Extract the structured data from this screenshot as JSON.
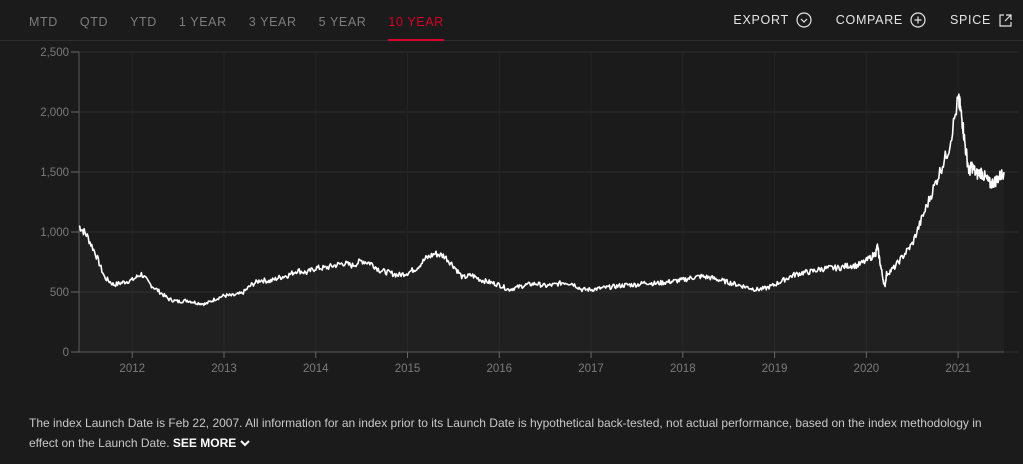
{
  "tabs": [
    {
      "label": "MTD",
      "active": false
    },
    {
      "label": "QTD",
      "active": false
    },
    {
      "label": "YTD",
      "active": false
    },
    {
      "label": "1 YEAR",
      "active": false
    },
    {
      "label": "3 YEAR",
      "active": false
    },
    {
      "label": "5 YEAR",
      "active": false
    },
    {
      "label": "10 YEAR",
      "active": true
    }
  ],
  "actions": {
    "export": "EXPORT",
    "compare": "COMPARE",
    "spice": "SPICE"
  },
  "colors": {
    "accent": "#d6002a",
    "background": "#1b1b1b",
    "line": "#ffffff"
  },
  "chart_data": {
    "type": "line",
    "title": "",
    "xlabel": "",
    "ylabel": "",
    "ylim": [
      0,
      2500
    ],
    "yticks": [
      0,
      500,
      1000,
      1500,
      2000,
      2500
    ],
    "ytick_labels": [
      "0",
      "500",
      "1,000",
      "1,500",
      "2,000",
      "2,500"
    ],
    "xlim": [
      2011.42,
      2021.5
    ],
    "xticks": [
      2012,
      2013,
      2014,
      2015,
      2016,
      2017,
      2018,
      2019,
      2020,
      2021
    ],
    "xtick_labels": [
      "2012",
      "2013",
      "2014",
      "2015",
      "2016",
      "2017",
      "2018",
      "2019",
      "2020",
      "2021"
    ],
    "grid": true,
    "series": [
      {
        "x": [
          2011.42,
          2011.5,
          2011.6,
          2011.7,
          2011.8,
          2011.9,
          2012.0,
          2012.1,
          2012.2,
          2012.3,
          2012.4,
          2012.5,
          2012.6,
          2012.7,
          2012.8,
          2012.9,
          2013.0,
          2013.1,
          2013.2,
          2013.3,
          2013.4,
          2013.5,
          2013.6,
          2013.7,
          2013.8,
          2013.9,
          2014.0,
          2014.1,
          2014.2,
          2014.3,
          2014.4,
          2014.5,
          2014.6,
          2014.7,
          2014.8,
          2014.9,
          2015.0,
          2015.1,
          2015.2,
          2015.3,
          2015.4,
          2015.5,
          2015.6,
          2015.7,
          2015.8,
          2015.9,
          2016.0,
          2016.1,
          2016.2,
          2016.3,
          2016.4,
          2016.5,
          2016.6,
          2016.7,
          2016.8,
          2016.9,
          2017.0,
          2017.1,
          2017.2,
          2017.3,
          2017.4,
          2017.5,
          2017.6,
          2017.7,
          2017.8,
          2017.9,
          2018.0,
          2018.1,
          2018.2,
          2018.3,
          2018.4,
          2018.5,
          2018.6,
          2018.7,
          2018.8,
          2018.9,
          2019.0,
          2019.1,
          2019.2,
          2019.3,
          2019.4,
          2019.5,
          2019.6,
          2019.7,
          2019.8,
          2019.9,
          2020.0,
          2020.1,
          2020.12,
          2020.16,
          2020.2,
          2020.22,
          2020.3,
          2020.4,
          2020.5,
          2020.6,
          2020.7,
          2020.8,
          2020.9,
          2021.0,
          2021.02,
          2021.05,
          2021.08,
          2021.12,
          2021.15,
          2021.2,
          2021.25,
          2021.3,
          2021.35,
          2021.4,
          2021.45,
          2021.5
        ],
        "values": [
          1050,
          980,
          820,
          620,
          560,
          580,
          600,
          650,
          560,
          500,
          440,
          420,
          430,
          410,
          400,
          440,
          470,
          470,
          490,
          560,
          600,
          590,
          620,
          640,
          680,
          660,
          700,
          700,
          720,
          740,
          720,
          760,
          740,
          680,
          660,
          640,
          660,
          700,
          780,
          820,
          800,
          720,
          620,
          640,
          600,
          580,
          560,
          520,
          540,
          560,
          570,
          550,
          560,
          580,
          570,
          520,
          520,
          530,
          540,
          550,
          560,
          560,
          580,
          570,
          580,
          590,
          600,
          620,
          630,
          620,
          600,
          580,
          560,
          540,
          520,
          530,
          560,
          600,
          640,
          660,
          670,
          690,
          700,
          700,
          720,
          720,
          760,
          820,
          880,
          700,
          540,
          650,
          700,
          800,
          900,
          1100,
          1300,
          1500,
          1700,
          2100,
          2050,
          1900,
          1700,
          1500,
          1550,
          1480,
          1500,
          1450,
          1400,
          1420,
          1460,
          1500
        ]
      }
    ]
  },
  "footnote": {
    "text": "The index Launch Date is Feb 22, 2007. All information for an index prior to its Launch Date is hypothetical back-tested, not actual performance, based on the index methodology in effect on the Launch Date.",
    "see_more": "SEE MORE"
  }
}
